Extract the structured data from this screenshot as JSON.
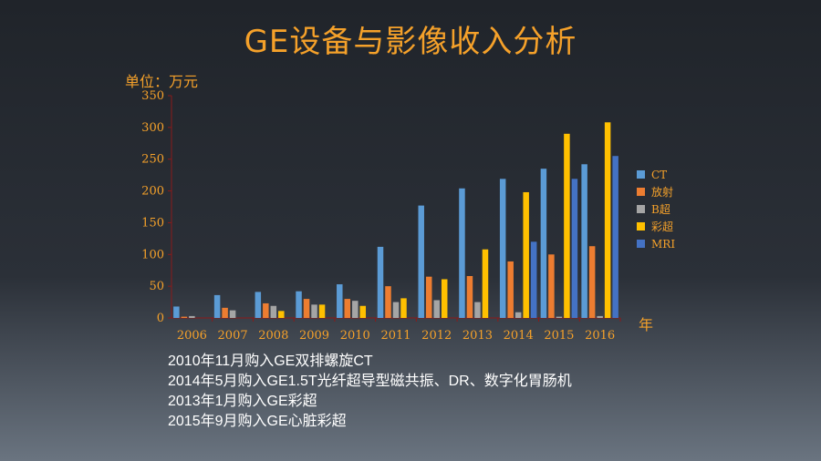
{
  "title": "GE设备与影像收入分析",
  "unit_label": "单位：万元",
  "x_unit": "年",
  "notes": [
    "2010年11月购入GE双排螺旋CT",
    "2014年5月购入GE1.5T光纤超导型磁共振、DR、数字化胃肠机",
    "2013年1月购入GE彩超",
    "2015年9月购入GE心脏彩超"
  ],
  "chart_data": {
    "type": "bar",
    "title": "GE设备与影像收入分析",
    "ylabel": "单位：万元",
    "xlabel": "年",
    "ylim": [
      0,
      350
    ],
    "yticks": [
      0,
      50,
      100,
      150,
      200,
      250,
      300,
      350
    ],
    "categories": [
      "2006",
      "2007",
      "2008",
      "2009",
      "2010",
      "2011",
      "2012",
      "2013",
      "2014",
      "2015",
      "2016"
    ],
    "series": [
      {
        "name": "CT",
        "color": "#5b9bd5",
        "values": [
          18,
          36,
          41,
          42,
          53,
          112,
          177,
          204,
          219,
          235,
          242
        ]
      },
      {
        "name": "放射",
        "color": "#ed7d31",
        "values": [
          2,
          16,
          23,
          30,
          30,
          50,
          65,
          66,
          89,
          100,
          113
        ]
      },
      {
        "name": "B超",
        "color": "#a5a5a5",
        "values": [
          3,
          12,
          19,
          21,
          27,
          25,
          28,
          25,
          9,
          2,
          3
        ]
      },
      {
        "name": "彩超",
        "color": "#ffc000",
        "values": [
          0,
          0,
          11,
          21,
          19,
          31,
          61,
          108,
          198,
          290,
          308
        ]
      },
      {
        "name": "MRI",
        "color": "#4472c4",
        "values": [
          0,
          0,
          0,
          0,
          0,
          0,
          0,
          0,
          120,
          219,
          255
        ]
      }
    ],
    "legend_position": "right",
    "grid": false
  }
}
